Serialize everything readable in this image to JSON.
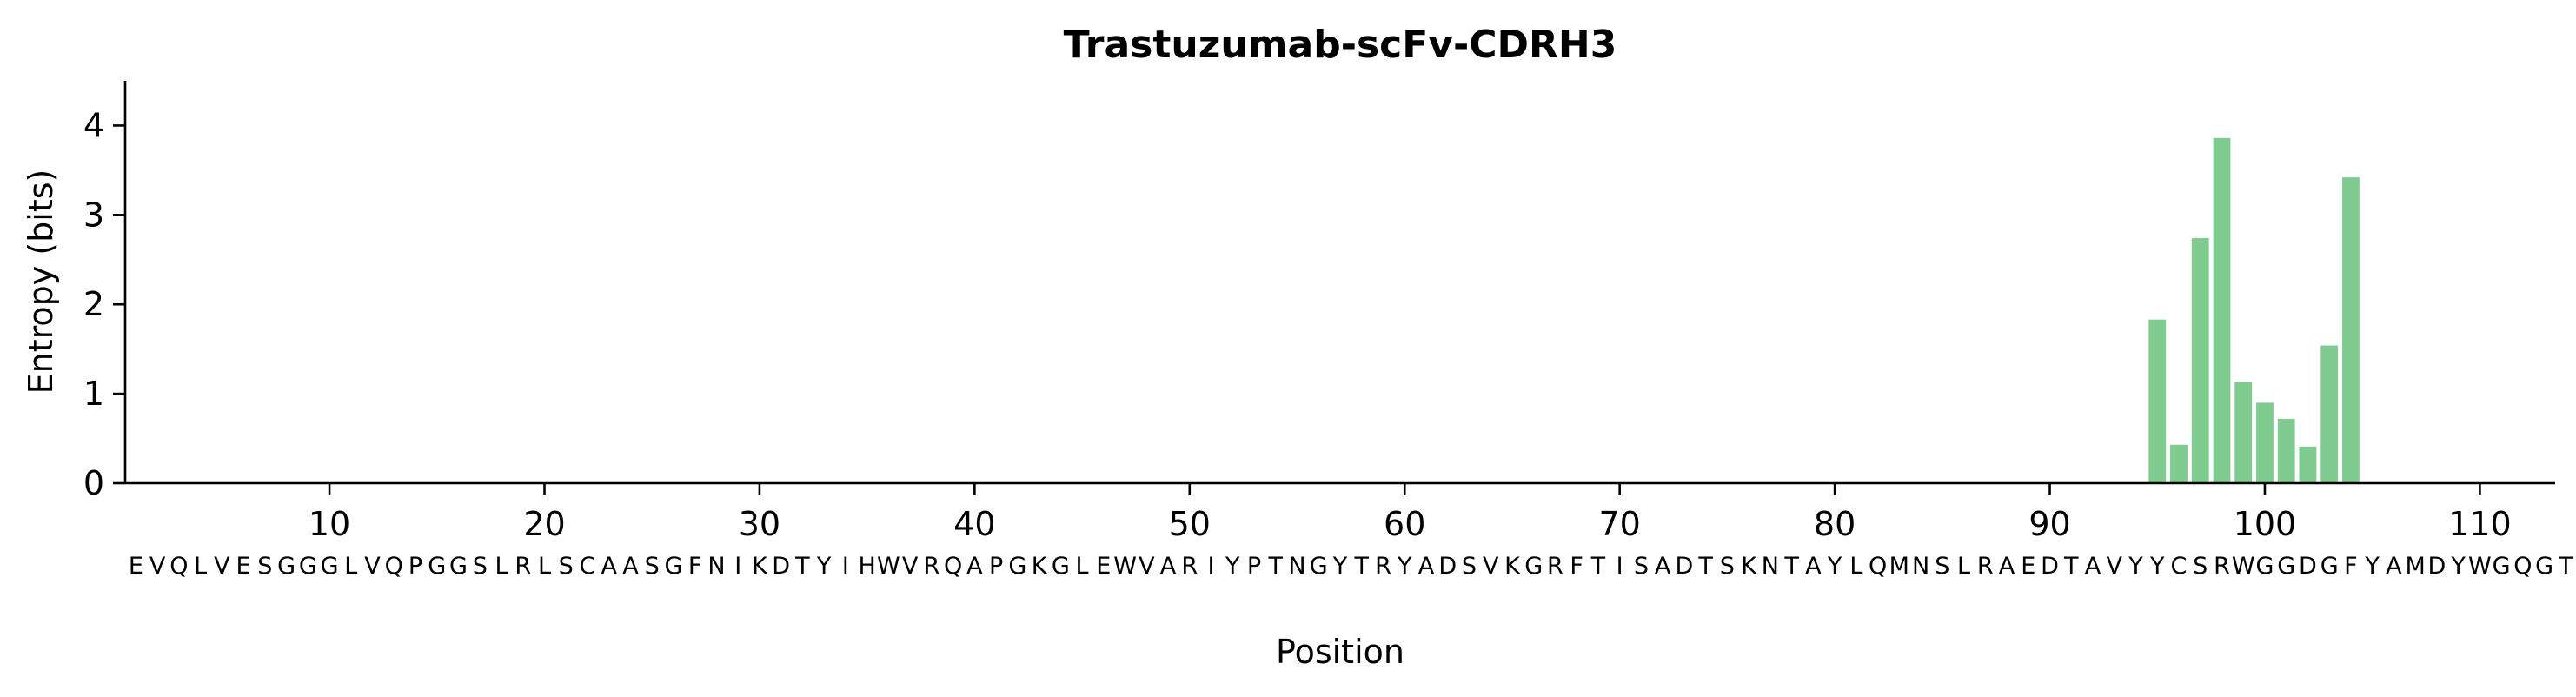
{
  "chart_data": {
    "type": "bar",
    "title": "Trastuzumab-scFv-CDRH3",
    "xlabel": "Position",
    "ylabel": "Entropy (bits)",
    "xlim": [
      0.5,
      113.5
    ],
    "ylim": [
      0,
      4.5
    ],
    "xticks": [
      10,
      20,
      30,
      40,
      50,
      60,
      70,
      80,
      90,
      100,
      110
    ],
    "yticks": [
      0,
      1,
      2,
      3,
      4
    ],
    "sequence": "EVQLVESGGGLVQPGGSLRLSCAASGFNIKDTYIHWVRQAPGKGLEWVARIYPTNGYTRYADSVKGRFTISADTSKNTAYLQMNSLRAEDTAVYYCSRWGGDGFYAMDYWGQGTLVTVSS",
    "x": [
      95,
      96,
      97,
      98,
      99,
      100,
      101,
      102,
      103,
      104
    ],
    "values": [
      1.83,
      0.43,
      2.74,
      3.86,
      1.13,
      0.9,
      0.72,
      0.41,
      1.54,
      3.42
    ],
    "bar_color": "#7fcb90",
    "grid": false
  }
}
